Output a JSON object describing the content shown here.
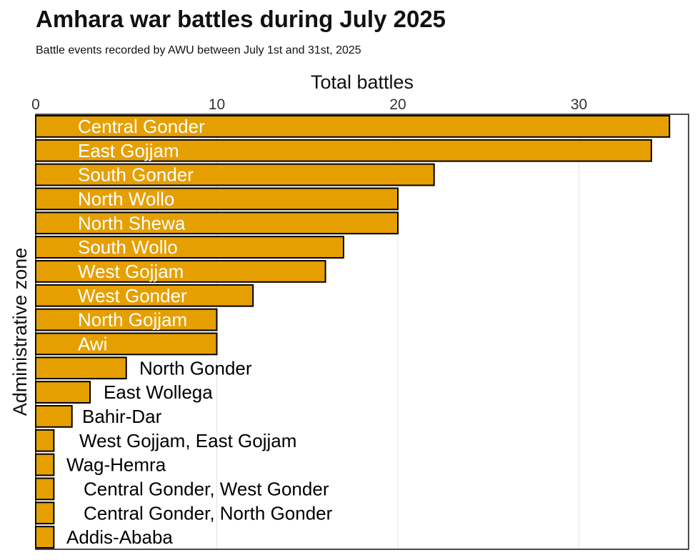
{
  "chart_data": {
    "type": "bar",
    "orientation": "horizontal",
    "title": "Amhara war battles during July 2025",
    "subtitle": "Battle events recorded by AWU between July 1st and 31st, 2025",
    "xlabel": "Total battles",
    "ylabel": "Administrative zone",
    "xlim": [
      0,
      35.5
    ],
    "xticks": [
      "0",
      "10",
      "20",
      "30"
    ],
    "xtick_values": [
      0,
      10,
      20,
      30
    ],
    "grid": true,
    "bar_color": "#E69F00",
    "bar_edge_color": "#000000",
    "label_color_inside": "#FFFFFF",
    "label_color_outside": "#000000",
    "categories": [
      "Central Gonder",
      "East Gojjam",
      "South Gonder",
      "North Wollo",
      "North Shewa",
      "South Wollo",
      "West Gojjam",
      "West Gonder",
      "North Gojjam",
      "Awi",
      "North Gonder",
      "East Wollega",
      "Bahir-Dar",
      "West Gojjam, East Gojjam",
      "Wag-Hemra",
      "Central Gonder, West Gonder",
      "Central Gonder, North Gonder",
      "Addis-Ababa"
    ],
    "values": [
      35,
      34,
      22,
      20,
      20,
      17,
      16,
      12,
      10,
      10,
      5,
      3,
      2,
      1,
      1,
      1,
      1,
      1
    ],
    "label_inside": [
      true,
      true,
      true,
      true,
      true,
      true,
      true,
      true,
      true,
      true,
      false,
      false,
      false,
      false,
      false,
      false,
      false,
      false
    ]
  }
}
